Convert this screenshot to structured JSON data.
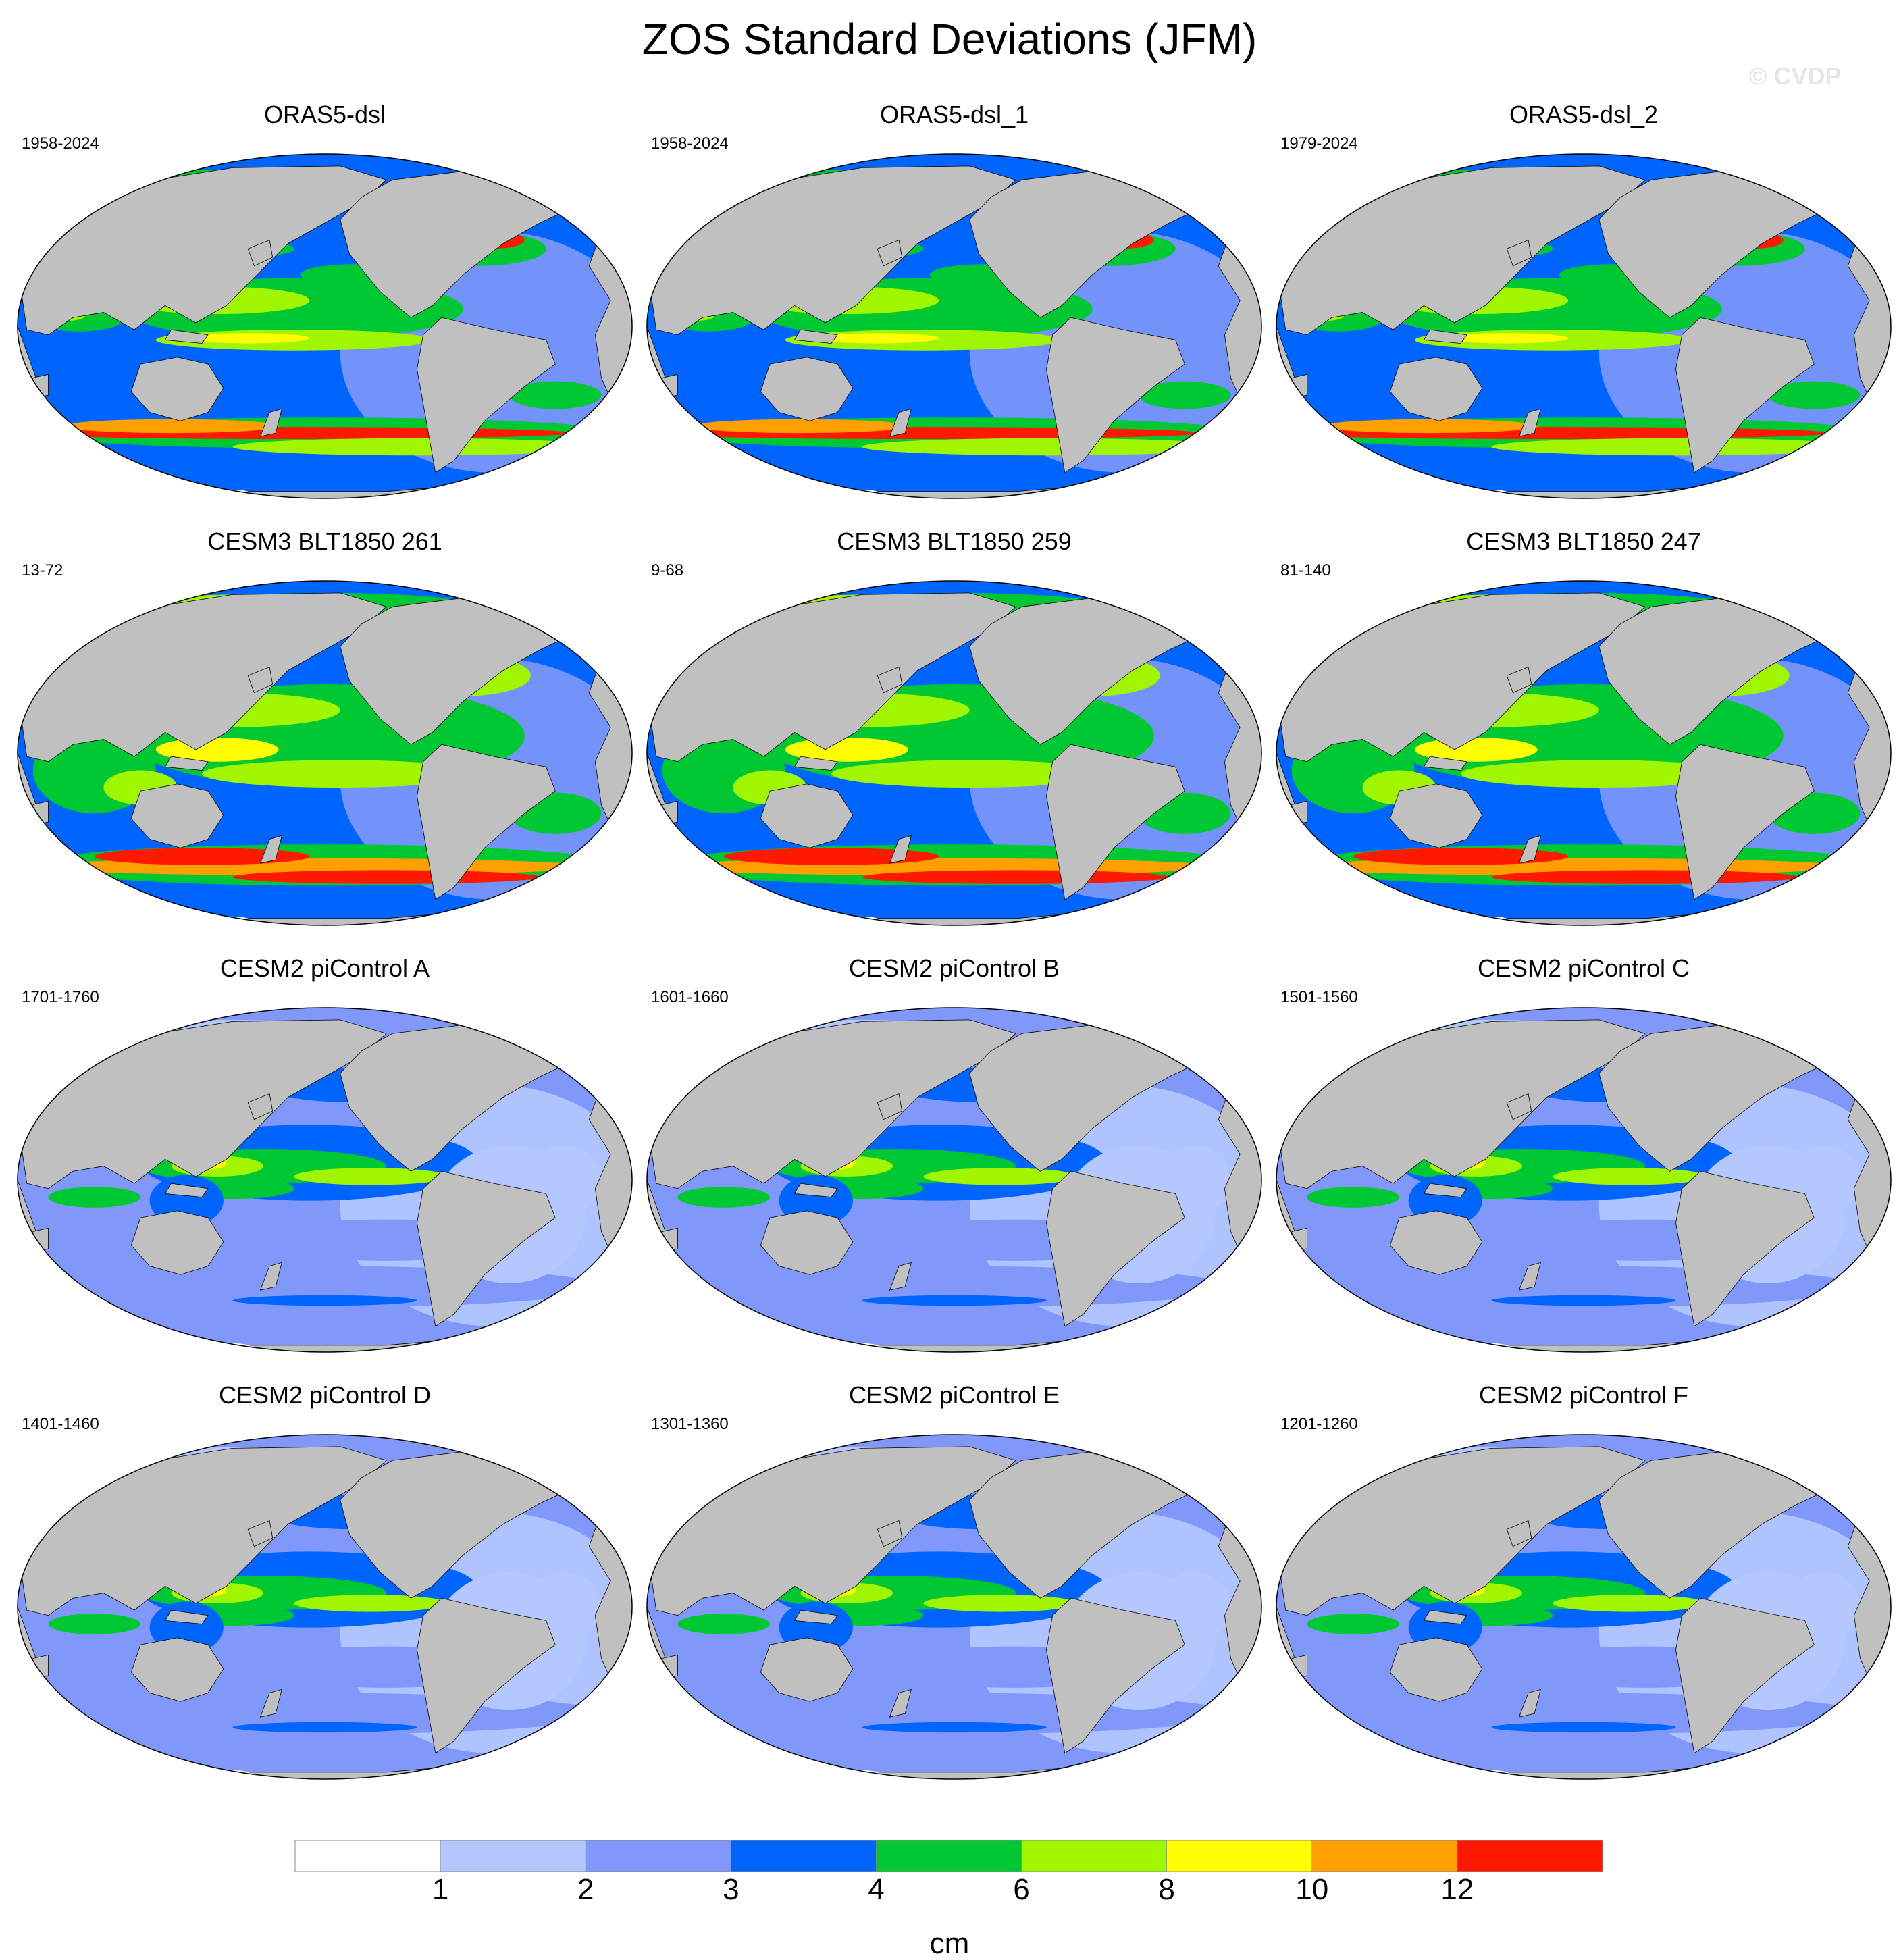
{
  "title": "ZOS Standard Deviations (JFM)",
  "watermark": "© CVDP",
  "colors": {
    "land": "#c0c0c0",
    "bins": [
      "#ffffff",
      "#b4c8ff",
      "#8098fa",
      "#0064ff",
      "#00c832",
      "#a0f500",
      "#ffff00",
      "#ffa000",
      "#ff1900"
    ]
  },
  "panels": [
    {
      "title": "ORAS5-dsl",
      "period": "1958-2024",
      "style": "reanalysis"
    },
    {
      "title": "ORAS5-dsl_1",
      "period": "1958-2024",
      "style": "reanalysis"
    },
    {
      "title": "ORAS5-dsl_2",
      "period": "1979-2024",
      "style": "reanalysis"
    },
    {
      "title": "CESM3 BLT1850 261",
      "period": "13-72",
      "style": "cesm3"
    },
    {
      "title": "CESM3 BLT1850 259",
      "period": "9-68",
      "style": "cesm3"
    },
    {
      "title": "CESM3 BLT1850 247",
      "period": "81-140",
      "style": "cesm3"
    },
    {
      "title": "CESM2 piControl A",
      "period": "1701-1760",
      "style": "cesm2"
    },
    {
      "title": "CESM2 piControl B",
      "period": "1601-1660",
      "style": "cesm2"
    },
    {
      "title": "CESM2 piControl C",
      "period": "1501-1560",
      "style": "cesm2"
    },
    {
      "title": "CESM2 piControl D",
      "period": "1401-1460",
      "style": "cesm2"
    },
    {
      "title": "CESM2 piControl E",
      "period": "1301-1360",
      "style": "cesm2"
    },
    {
      "title": "CESM2 piControl F",
      "period": "1201-1260",
      "style": "cesm2"
    }
  ],
  "colorbar": {
    "labels": [
      "1",
      "2",
      "3",
      "4",
      "6",
      "8",
      "10",
      "12"
    ],
    "unit": "cm"
  }
}
